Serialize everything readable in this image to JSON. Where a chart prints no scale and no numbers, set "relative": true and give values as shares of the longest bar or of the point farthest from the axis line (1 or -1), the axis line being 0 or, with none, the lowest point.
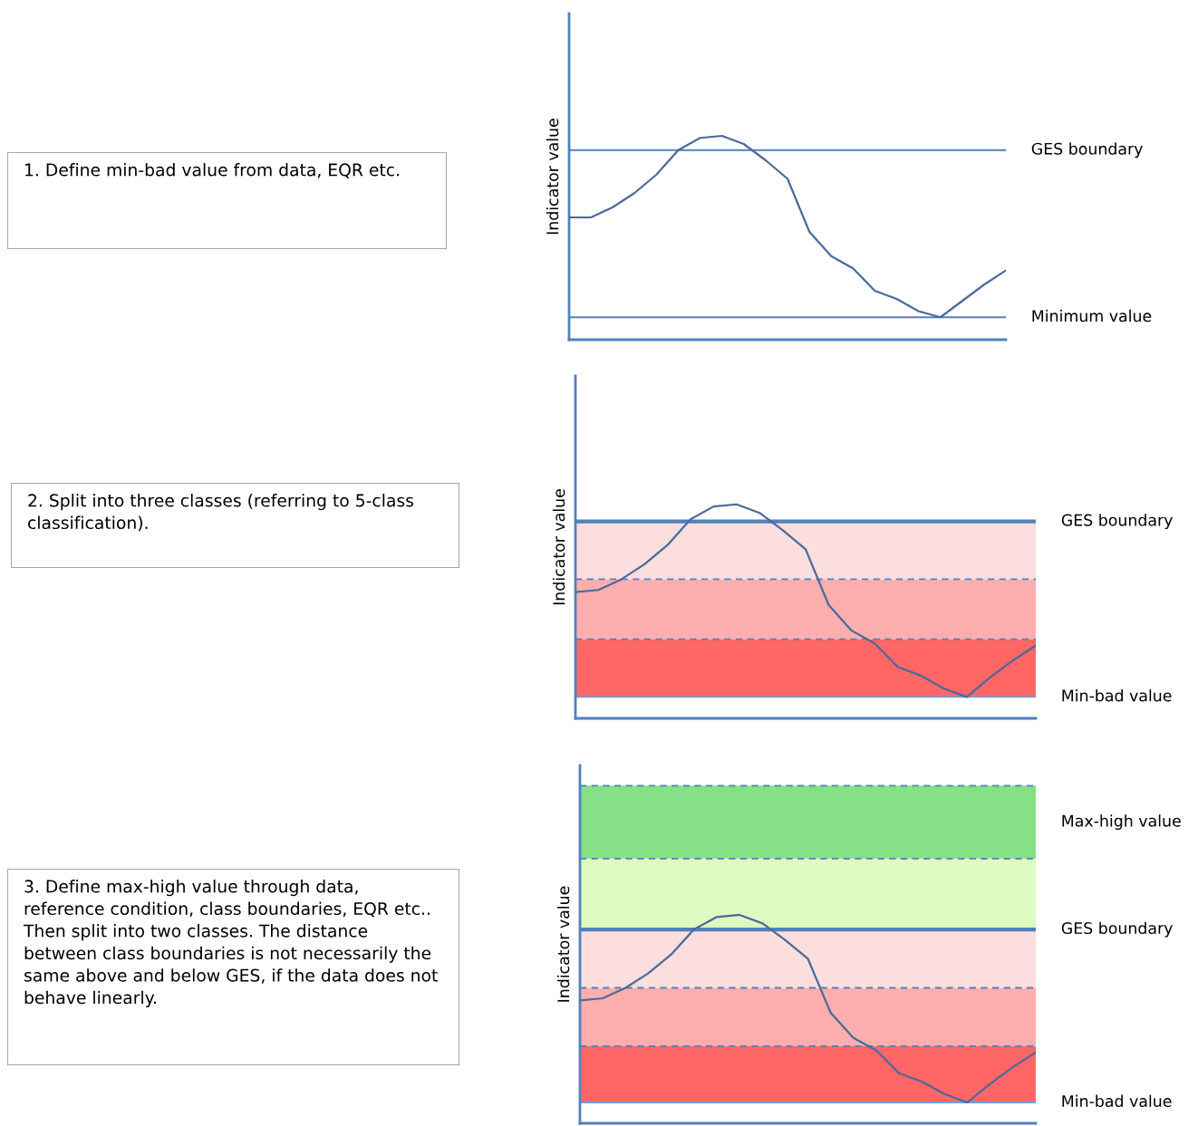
{
  "chart_data": [
    {
      "type": "other",
      "annotations": [
        "1. Define min-bad value from data, EQR etc."
      ]
    },
    {
      "type": "line",
      "relative": true,
      "ylabel": "Indicator value",
      "marker": "none",
      "line_style": "solid",
      "categories": [
        null,
        null,
        null,
        null,
        null,
        null,
        null,
        null,
        null,
        null,
        null,
        null,
        null,
        null,
        null,
        null,
        null,
        null,
        null,
        null,
        null
      ],
      "series": [
        {
          "color": "#4a6a9a",
          "values": [
            0.6,
            0.6,
            0.65,
            0.72,
            0.81,
            0.93,
            0.99,
            1.0,
            0.96,
            0.88,
            0.79,
            0.53,
            0.41,
            0.35,
            0.24,
            0.2,
            0.14,
            0.11,
            0.19,
            0.27,
            0.34
          ]
        }
      ],
      "ref_lines": [
        {
          "axis": "y",
          "value": 0.93,
          "label": "GES boundary",
          "color": "#4f81bd",
          "line_style": "solid"
        },
        {
          "axis": "y",
          "value": 0.11,
          "label": "Minimum value",
          "color": "#4f81bd",
          "line_style": "solid"
        }
      ]
    },
    {
      "type": "other",
      "annotations": [
        "2. Split into three classes (referring to 5-class classification)."
      ]
    },
    {
      "type": "line",
      "relative": true,
      "ylabel": "Indicator value",
      "marker": "none",
      "line_style": "solid",
      "categories": [
        null,
        null,
        null,
        null,
        null,
        null,
        null,
        null,
        null,
        null,
        null,
        null,
        null,
        null,
        null,
        null,
        null,
        null,
        null,
        null,
        null
      ],
      "series": [
        {
          "color": "#4a6a9a",
          "values": [
            0.59,
            0.6,
            0.65,
            0.72,
            0.81,
            0.93,
            0.99,
            1.0,
            0.96,
            0.88,
            0.79,
            0.53,
            0.41,
            0.35,
            0.24,
            0.2,
            0.14,
            0.1,
            0.19,
            0.27,
            0.34
          ]
        }
      ],
      "bands": [
        {
          "axis": "y",
          "from": 0.1,
          "to": 0.37,
          "color": "#ff6666"
        },
        {
          "axis": "y",
          "from": 0.37,
          "to": 0.65,
          "color": "#fcaeae"
        },
        {
          "axis": "y",
          "from": 0.65,
          "to": 0.92,
          "color": "#fcdede"
        }
      ],
      "ref_lines": [
        {
          "axis": "y",
          "value": 0.92,
          "label": "GES boundary",
          "color": "#4f81bd",
          "line_style": "solid"
        },
        {
          "axis": "y",
          "value": 0.65,
          "color": "#4f81bd",
          "line_style": "dashed"
        },
        {
          "axis": "y",
          "value": 0.37,
          "color": "#4f81bd",
          "line_style": "dashed"
        },
        {
          "axis": "y",
          "value": 0.1,
          "label": "Min-bad value",
          "color": "#6fa0dc",
          "line_style": "solid"
        }
      ]
    },
    {
      "type": "other",
      "annotations": [
        "3. Define max-high value through data, reference condition, class boundaries, EQR etc.. Then split into two classes. The distance between class boundaries is not necessarily the same above and below GES, if the data does not behave linearly."
      ]
    },
    {
      "type": "line",
      "relative": true,
      "ylabel": "Indicator value",
      "marker": "none",
      "line_style": "solid",
      "categories": [
        null,
        null,
        null,
        null,
        null,
        null,
        null,
        null,
        null,
        null,
        null,
        null,
        null,
        null,
        null,
        null,
        null,
        null,
        null,
        null,
        null
      ],
      "series": [
        {
          "color": "#4a6a9a",
          "values": [
            0.59,
            0.6,
            0.65,
            0.72,
            0.81,
            0.93,
            0.99,
            1.0,
            0.96,
            0.88,
            0.79,
            0.53,
            0.41,
            0.35,
            0.24,
            0.2,
            0.14,
            0.1,
            0.19,
            0.27,
            0.34
          ]
        }
      ],
      "bands": [
        {
          "axis": "y",
          "from": 0.1,
          "to": 0.37,
          "color": "#ff6666"
        },
        {
          "axis": "y",
          "from": 0.37,
          "to": 0.65,
          "color": "#fcaeae"
        },
        {
          "axis": "y",
          "from": 0.65,
          "to": 0.93,
          "color": "#fcdede"
        },
        {
          "axis": "y",
          "from": 0.93,
          "to": 1.27,
          "color": "#ddfbc0"
        },
        {
          "axis": "y",
          "from": 1.27,
          "to": 1.62,
          "color": "#86e086",
          "label": "Max-high value"
        }
      ],
      "ref_lines": [
        {
          "axis": "y",
          "value": 1.62,
          "color": "#4f81bd",
          "line_style": "dashed"
        },
        {
          "axis": "y",
          "value": 1.27,
          "color": "#4f81bd",
          "line_style": "dashed"
        },
        {
          "axis": "y",
          "value": 0.93,
          "label": "GES boundary",
          "color": "#4f81bd",
          "line_style": "solid"
        },
        {
          "axis": "y",
          "value": 0.65,
          "color": "#4f81bd",
          "line_style": "dashed"
        },
        {
          "axis": "y",
          "value": 0.37,
          "color": "#4f81bd",
          "line_style": "dashed"
        },
        {
          "axis": "y",
          "value": 0.1,
          "label": "Min-bad value",
          "color": "#6fa0dc",
          "line_style": "solid"
        }
      ]
    }
  ]
}
